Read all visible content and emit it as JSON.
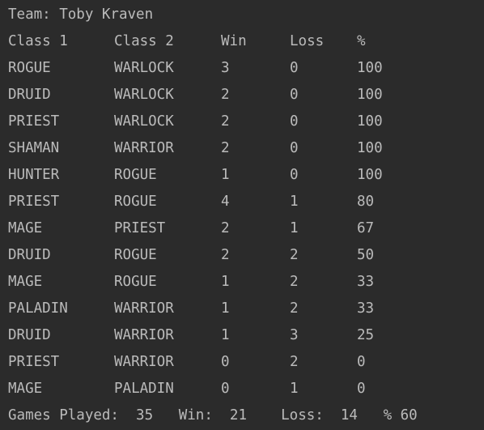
{
  "team_line": "Team: Toby Kraven",
  "headers": [
    "Class 1",
    "Class 2",
    "Win",
    "Loss",
    "%"
  ],
  "rows": [
    [
      "ROGUE",
      "WARLOCK",
      "3",
      "0",
      "100"
    ],
    [
      "DRUID",
      "WARLOCK",
      "2",
      "0",
      "100"
    ],
    [
      "PRIEST",
      "WARLOCK",
      "2",
      "0",
      "100"
    ],
    [
      "SHAMAN",
      "WARRIOR",
      "2",
      "0",
      "100"
    ],
    [
      "HUNTER",
      "ROGUE",
      "1",
      "0",
      "100"
    ],
    [
      "PRIEST",
      "ROGUE",
      "4",
      "1",
      "80"
    ],
    [
      "MAGE",
      "PRIEST",
      "2",
      "1",
      "67"
    ],
    [
      "DRUID",
      "ROGUE",
      "2",
      "2",
      "50"
    ],
    [
      "MAGE",
      "ROGUE",
      "1",
      "2",
      "33"
    ],
    [
      "PALADIN",
      "WARRIOR",
      "1",
      "2",
      "33"
    ],
    [
      "DRUID",
      "WARRIOR",
      "1",
      "3",
      "25"
    ],
    [
      "PRIEST",
      "WARRIOR",
      "0",
      "2",
      "0"
    ],
    [
      "MAGE",
      "PALADIN",
      "0",
      "1",
      "0"
    ]
  ],
  "summary_line": "Games Played:  35   Win:  21    Loss:  14   % 60",
  "colors": {
    "background": "#2b2b2b",
    "text": "#bbbbbb"
  }
}
